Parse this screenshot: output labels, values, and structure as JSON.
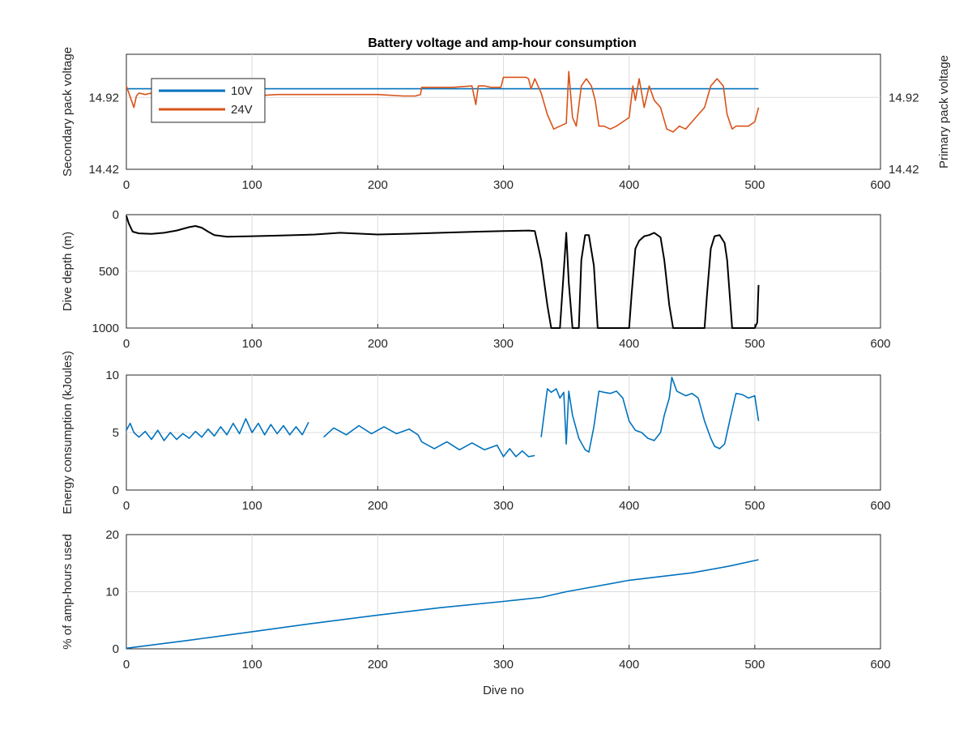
{
  "title": "Battery voltage and amp-hour consumption",
  "xlabel": "Dive no",
  "colors": {
    "blue": "#0072bd",
    "orange": "#d95319",
    "black": "#000000",
    "axis": "#262626"
  },
  "chart_data": [
    {
      "type": "line",
      "title": "Battery voltage and amp-hour consumption",
      "xlim": [
        0,
        600
      ],
      "xticks": [
        "0",
        "100",
        "200",
        "300",
        "400",
        "500",
        "600"
      ],
      "ylabel_left": "Secondary pack voltage",
      "ylabel_right": "Primary pack voltage",
      "ylim_left": [
        14.42,
        15.22
      ],
      "ylim_right": [
        14.42,
        15.22
      ],
      "yticks_left": [
        "14.42",
        "14.92"
      ],
      "yticks_right": [
        "14.42",
        "14.92"
      ],
      "legend": {
        "placement": "top-left",
        "entries": [
          "10V",
          "24V"
        ]
      },
      "grid": true,
      "series": [
        {
          "name": "10V",
          "axis": "left",
          "color": "#0072bd",
          "x": [
            0,
            503
          ],
          "y": [
            14.98,
            14.98
          ]
        },
        {
          "name": "24V",
          "axis": "right",
          "color": "#d95319",
          "x": [
            0,
            2,
            4,
            6,
            8,
            10,
            15,
            20,
            30,
            40,
            50,
            60,
            70,
            80,
            100,
            120,
            150,
            180,
            200,
            220,
            230,
            234,
            235,
            240,
            260,
            275,
            278,
            280,
            285,
            290,
            298,
            300,
            310,
            318,
            320,
            322,
            325,
            330,
            335,
            340,
            345,
            350,
            352,
            355,
            358,
            362,
            366,
            370,
            373,
            376,
            380,
            385,
            390,
            395,
            400,
            403,
            405,
            408,
            412,
            416,
            420,
            425,
            430,
            435,
            440,
            445,
            450,
            455,
            460,
            465,
            470,
            475,
            478,
            482,
            485,
            490,
            495,
            500,
            503
          ],
          "y": [
            15.0,
            14.95,
            14.9,
            14.85,
            14.93,
            14.95,
            14.94,
            14.95,
            14.95,
            14.96,
            14.95,
            14.95,
            14.95,
            14.94,
            14.93,
            14.94,
            14.94,
            14.94,
            14.94,
            14.93,
            14.93,
            14.94,
            14.99,
            14.99,
            14.99,
            15.0,
            14.87,
            15.0,
            15.0,
            14.99,
            14.99,
            15.06,
            15.06,
            15.06,
            15.05,
            14.98,
            15.05,
            14.95,
            14.8,
            14.7,
            14.72,
            14.74,
            15.1,
            14.78,
            14.72,
            15.0,
            15.05,
            15.0,
            14.9,
            14.72,
            14.72,
            14.7,
            14.72,
            14.75,
            14.78,
            15.0,
            14.9,
            15.05,
            14.85,
            15.0,
            14.9,
            14.85,
            14.7,
            14.68,
            14.72,
            14.7,
            14.75,
            14.8,
            14.85,
            15.0,
            15.05,
            15.0,
            14.8,
            14.7,
            14.72,
            14.72,
            14.72,
            14.75,
            14.85
          ]
        }
      ]
    },
    {
      "type": "line",
      "xlim": [
        0,
        600
      ],
      "xticks": [
        "0",
        "100",
        "200",
        "300",
        "400",
        "500",
        "600"
      ],
      "ylabel": "Dive depth (m)",
      "ylim": [
        0,
        1000
      ],
      "y_reversed": true,
      "yticks": [
        "0",
        "500",
        "1000"
      ],
      "grid": true,
      "series": [
        {
          "color": "#000000",
          "x": [
            0,
            2,
            5,
            10,
            20,
            30,
            40,
            50,
            55,
            60,
            65,
            70,
            80,
            100,
            120,
            150,
            170,
            200,
            220,
            250,
            280,
            300,
            320,
            325,
            330,
            335,
            338,
            345,
            348,
            350,
            352,
            355,
            358,
            360,
            362,
            365,
            368,
            372,
            375,
            380,
            385,
            390,
            395,
            400,
            402,
            405,
            408,
            412,
            416,
            420,
            425,
            428,
            432,
            435,
            440,
            450,
            455,
            460,
            462,
            465,
            468,
            472,
            476,
            478,
            482,
            490,
            500,
            502,
            503
          ],
          "y": [
            10,
            80,
            150,
            165,
            170,
            160,
            140,
            110,
            100,
            115,
            150,
            180,
            195,
            190,
            185,
            175,
            160,
            175,
            170,
            160,
            150,
            145,
            140,
            145,
            400,
            800,
            1000,
            1000,
            500,
            160,
            600,
            1000,
            1000,
            1000,
            400,
            180,
            180,
            450,
            1000,
            1000,
            1000,
            1000,
            1000,
            1000,
            700,
            300,
            230,
            190,
            180,
            160,
            200,
            400,
            800,
            1000,
            1000,
            1000,
            1000,
            1000,
            700,
            300,
            190,
            180,
            250,
            400,
            1000,
            1000,
            1000,
            950,
            620
          ]
        }
      ]
    },
    {
      "type": "line",
      "xlim": [
        0,
        600
      ],
      "xticks": [
        "0",
        "100",
        "200",
        "300",
        "400",
        "500",
        "600"
      ],
      "ylabel": "Energy consumption (kJoules)",
      "ylim": [
        0,
        10
      ],
      "yticks": [
        "0",
        "5",
        "10"
      ],
      "grid": true,
      "series": [
        {
          "color": "#0072bd",
          "x": [
            0,
            3,
            6,
            10,
            15,
            20,
            25,
            30,
            35,
            40,
            45,
            50,
            55,
            60,
            65,
            70,
            75,
            80,
            85,
            90,
            95,
            100,
            105,
            110,
            115,
            120,
            125,
            130,
            135,
            140,
            145
          ],
          "y": [
            5.2,
            5.8,
            5.0,
            4.6,
            5.1,
            4.4,
            5.2,
            4.3,
            5.0,
            4.4,
            4.9,
            4.5,
            5.1,
            4.6,
            5.3,
            4.7,
            5.5,
            4.8,
            5.8,
            4.9,
            6.2,
            5.0,
            5.8,
            4.8,
            5.7,
            4.9,
            5.6,
            4.8,
            5.5,
            4.8,
            5.9
          ]
        },
        {
          "color": "#0072bd",
          "x": [
            157,
            165,
            175,
            185,
            195,
            205,
            215,
            225,
            232,
            235,
            245,
            255,
            265,
            275,
            285,
            295,
            300,
            305,
            310,
            315,
            320,
            325
          ],
          "y": [
            4.6,
            5.4,
            4.8,
            5.6,
            4.9,
            5.5,
            4.9,
            5.3,
            4.8,
            4.2,
            3.6,
            4.2,
            3.5,
            4.1,
            3.5,
            3.9,
            2.9,
            3.6,
            2.9,
            3.4,
            2.9,
            3.0
          ]
        },
        {
          "color": "#0072bd",
          "x": [
            330,
            335,
            338,
            342,
            345,
            348,
            350,
            352,
            355,
            360,
            365,
            368,
            372,
            376,
            380,
            385,
            390,
            395,
            400,
            405,
            410,
            415,
            420,
            425,
            428,
            432,
            434,
            438,
            445,
            450,
            455,
            460,
            465,
            468,
            472,
            476,
            480,
            485,
            490,
            495,
            500,
            503
          ],
          "y": [
            4.6,
            8.8,
            8.5,
            8.8,
            8.0,
            8.5,
            4.0,
            8.6,
            6.5,
            4.5,
            3.5,
            3.3,
            5.5,
            8.6,
            8.5,
            8.4,
            8.6,
            8.0,
            6.0,
            5.2,
            5.0,
            4.5,
            4.3,
            5.0,
            6.5,
            8.0,
            9.8,
            8.6,
            8.2,
            8.4,
            8.0,
            6.0,
            4.5,
            3.8,
            3.6,
            4.0,
            6.0,
            8.4,
            8.3,
            8.0,
            8.2,
            6.0
          ]
        }
      ]
    },
    {
      "type": "line",
      "xlim": [
        0,
        600
      ],
      "xticks": [
        "0",
        "100",
        "200",
        "300",
        "400",
        "500",
        "600"
      ],
      "xlabel": "Dive no",
      "ylabel": "% of amp-hours used",
      "ylim": [
        0,
        20
      ],
      "yticks": [
        "0",
        "10",
        "20"
      ],
      "grid": true,
      "series": [
        {
          "color": "#0072bd",
          "x": [
            0,
            50,
            100,
            150,
            200,
            250,
            300,
            330,
            350,
            400,
            450,
            480,
            503
          ],
          "y": [
            0.1,
            1.5,
            3.0,
            4.5,
            5.9,
            7.2,
            8.3,
            9.0,
            10.0,
            12.0,
            13.3,
            14.5,
            15.6
          ]
        }
      ]
    }
  ]
}
